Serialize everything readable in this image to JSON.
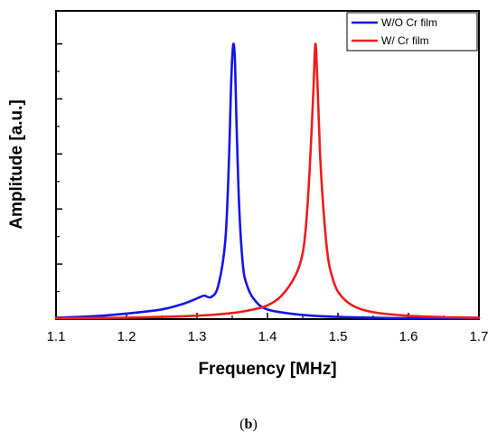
{
  "chart_data": {
    "type": "line",
    "title": "",
    "xlabel": "Frequency [MHz]",
    "ylabel": "Amplitude [a.u.]",
    "xlim": [
      1.1,
      1.7
    ],
    "ylim": [
      0,
      1.12
    ],
    "x_ticks": [
      "1.1",
      "1.2",
      "1.3",
      "1.4",
      "1.5",
      "1.6",
      "1.7"
    ],
    "y_ticks_labeled": false,
    "grid": false,
    "legend_position": "top-right",
    "series": [
      {
        "name": "W/O Cr film",
        "color": "#1515e6",
        "peak": {
          "x": 1.352,
          "y": 1.0
        },
        "x": [
          1.1,
          1.15,
          1.2,
          1.25,
          1.28,
          1.3,
          1.31,
          1.32,
          1.33,
          1.34,
          1.345,
          1.348,
          1.35,
          1.352,
          1.354,
          1.356,
          1.36,
          1.365,
          1.37,
          1.38,
          1.4,
          1.45,
          1.5,
          1.55,
          1.6,
          1.7
        ],
        "values": [
          0.005,
          0.01,
          0.02,
          0.035,
          0.055,
          0.075,
          0.085,
          0.08,
          0.12,
          0.28,
          0.55,
          0.82,
          0.95,
          1.0,
          0.93,
          0.72,
          0.4,
          0.2,
          0.13,
          0.075,
          0.035,
          0.015,
          0.008,
          0.005,
          0.003,
          0.002
        ]
      },
      {
        "name": "W/ Cr film",
        "color": "#ee1c1c",
        "peak": {
          "x": 1.468,
          "y": 1.0
        },
        "x": [
          1.1,
          1.2,
          1.3,
          1.35,
          1.38,
          1.4,
          1.42,
          1.44,
          1.45,
          1.455,
          1.46,
          1.465,
          1.468,
          1.471,
          1.475,
          1.48,
          1.485,
          1.49,
          1.5,
          1.52,
          1.55,
          1.6,
          1.65,
          1.7
        ],
        "values": [
          0.003,
          0.005,
          0.012,
          0.022,
          0.035,
          0.05,
          0.085,
          0.16,
          0.24,
          0.35,
          0.55,
          0.82,
          1.0,
          0.85,
          0.58,
          0.38,
          0.24,
          0.17,
          0.1,
          0.05,
          0.025,
          0.012,
          0.007,
          0.005
        ]
      }
    ]
  },
  "caption": {
    "open": "(",
    "label": "b",
    "close": ")"
  }
}
